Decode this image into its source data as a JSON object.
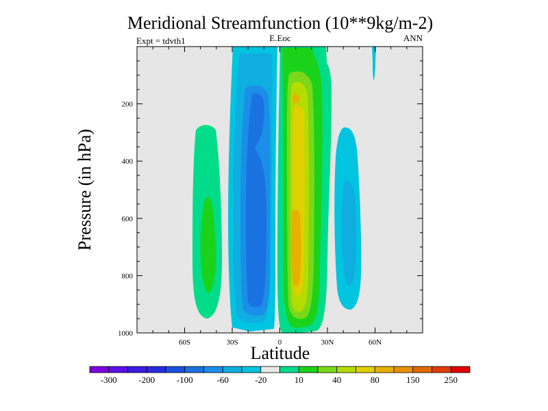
{
  "chart_data": {
    "type": "filled-contour",
    "title": "Meridional Streamfunction (10**9kg/m-2)",
    "left_label": "Expt = tdvth1",
    "center_label": "E.Eoc",
    "right_label": "ANN",
    "xlabel": "Latitude",
    "ylabel": "Pressure (in hPa)",
    "xlim": [
      -90,
      90
    ],
    "ylim": [
      0,
      1000
    ],
    "x_ticks": [
      {
        "value": -60,
        "label": "60S"
      },
      {
        "value": -30,
        "label": "30S"
      },
      {
        "value": 0,
        "label": "0"
      },
      {
        "value": 30,
        "label": "30N"
      },
      {
        "value": 60,
        "label": "60N"
      }
    ],
    "y_ticks": [
      {
        "value": 200,
        "label": "200"
      },
      {
        "value": 400,
        "label": "400"
      },
      {
        "value": 600,
        "label": "600"
      },
      {
        "value": 800,
        "label": "800"
      },
      {
        "value": 1000,
        "label": "1000"
      }
    ],
    "colorbar": {
      "colors": [
        "#7a00e0",
        "#5a10e8",
        "#3a1ce8",
        "#2a2ae0",
        "#1a50e0",
        "#1a72e0",
        "#1a8ee8",
        "#10aee0",
        "#00c4e0",
        "#e8e8e8",
        "#00dc8a",
        "#1ad21a",
        "#7ad81a",
        "#b4dc00",
        "#e0d000",
        "#e8b000",
        "#e89000",
        "#e06a00",
        "#e03c00",
        "#e00000"
      ],
      "labels": [
        "-300",
        "-200",
        "-100",
        "-60",
        "-20",
        "10",
        "40",
        "80",
        "150",
        "250"
      ]
    },
    "contour_regions": [
      {
        "name": "sh-ferrel-cell",
        "value_range": "10 to 40",
        "lat_center": -47,
        "pressure_top": 280,
        "pressure_bottom": 950,
        "peak": "40",
        "peak_pressure": 680
      },
      {
        "name": "sh-hadley-cell",
        "value_range": "-60 to -10",
        "lat_center": -16,
        "pressure_top": 0,
        "pressure_bottom": 985,
        "peak": "-60",
        "peak_pressure": 500
      },
      {
        "name": "nh-hadley-cell",
        "value_range": "10 to 150",
        "lat_center": 9,
        "pressure_top": 0,
        "pressure_bottom": 985,
        "peak": "150",
        "peak_pressure": 700
      },
      {
        "name": "nh-ferrel-cell",
        "value_range": "-20 to -10",
        "lat_center": 44,
        "pressure_top": 290,
        "pressure_bottom": 935,
        "peak": "-20",
        "peak_pressure": 500
      }
    ]
  }
}
